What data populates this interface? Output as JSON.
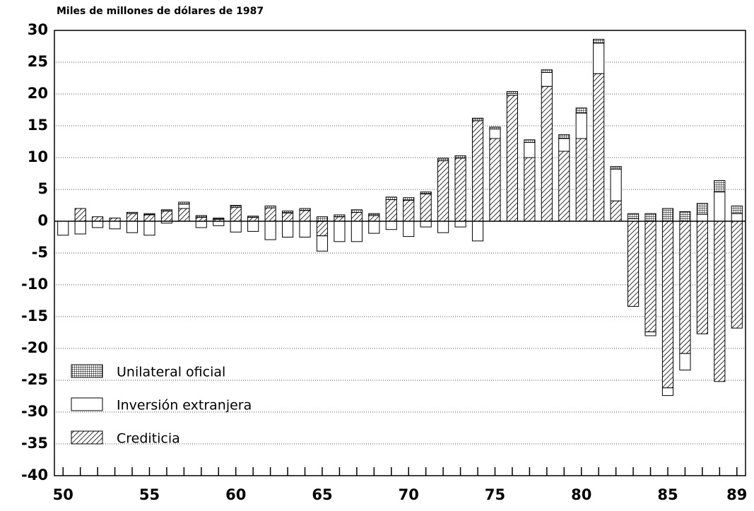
{
  "chart_data": {
    "type": "stacked_bar",
    "title": "Miles de millones de dólares de 1987",
    "categories": [
      "50",
      null,
      null,
      null,
      null,
      "55",
      null,
      null,
      null,
      null,
      "60",
      null,
      null,
      null,
      null,
      "65",
      null,
      null,
      null,
      null,
      "70",
      null,
      null,
      null,
      null,
      "75",
      null,
      null,
      null,
      null,
      "80",
      null,
      null,
      null,
      null,
      "85",
      null,
      null,
      null,
      "89"
    ],
    "series": [
      {
        "name": "Unilateral oficial",
        "color": "#ffffff",
        "pattern": "crosshatch",
        "values": [
          0,
          0,
          0,
          0,
          0.2,
          0.2,
          0.2,
          0.3,
          0.3,
          0.2,
          0.3,
          0.2,
          0.3,
          0.3,
          0.3,
          0.7,
          0.3,
          0.4,
          0.3,
          0.4,
          0.4,
          0.3,
          0.4,
          0.4,
          0.4,
          0.3,
          0.3,
          0.4,
          0.4,
          0.6,
          0.8,
          0.6,
          0.4,
          0.8,
          1.2,
          2,
          1.5,
          1.7,
          1.8,
          1.2
        ]
      },
      {
        "name": "Inversión extranjera",
        "color": "#ffffff",
        "pattern": "none",
        "values": [
          -2.2,
          -2,
          -1,
          -1.2,
          -1.8,
          -2.2,
          -0.3,
          0.7,
          -1,
          -0.7,
          -1.7,
          -1.6,
          -2.9,
          -2.5,
          -2.5,
          -2.4,
          -3.2,
          -3.2,
          -1.9,
          -1.3,
          -2.4,
          -0.9,
          -1.8,
          -0.9,
          -3.1,
          1.5,
          0.3,
          2.4,
          2.2,
          2,
          4,
          4.8,
          5,
          0.4,
          -0.6,
          -1.2,
          -2.6,
          1.1,
          4.6,
          1.2
        ]
      },
      {
        "name": "Crediticia",
        "color": "#ffffff",
        "pattern": "hatch",
        "values": [
          0,
          2,
          0.7,
          0.5,
          1.2,
          1,
          1.6,
          2,
          0.6,
          0.3,
          2.2,
          0.6,
          2.1,
          1.3,
          1.7,
          -2.3,
          0.7,
          1.4,
          0.9,
          3.4,
          3.3,
          4.3,
          9.5,
          9.9,
          15.8,
          13,
          19.8,
          10,
          21.2,
          11,
          13,
          23.2,
          3.2,
          -13.4,
          -17.4,
          -26.2,
          -20.8,
          -17.7,
          -25.2,
          -16.8
        ]
      }
    ],
    "ylim": [
      -40,
      30
    ],
    "yticks": [
      -40,
      -35,
      -30,
      -25,
      -20,
      -15,
      -10,
      -5,
      0,
      5,
      10,
      15,
      20,
      25,
      30
    ],
    "grid": true,
    "legend": "lower left"
  }
}
